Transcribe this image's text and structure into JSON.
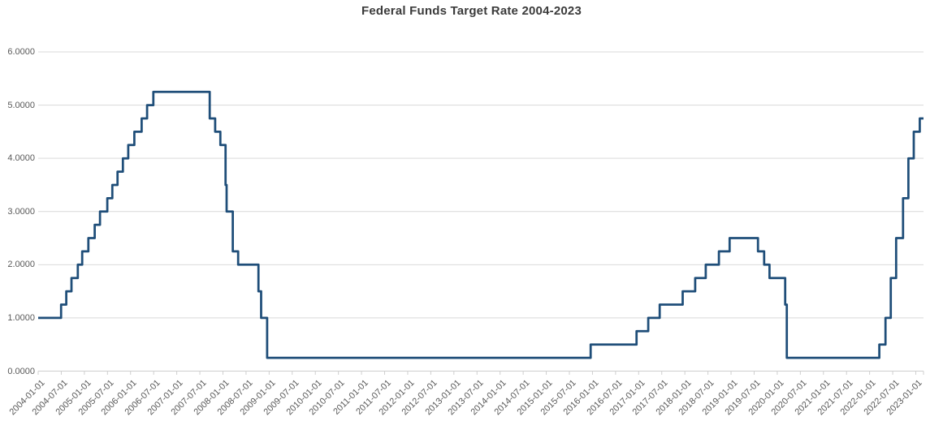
{
  "chart_data": {
    "type": "line",
    "title": "Federal Funds Target Rate 2004-2023",
    "xlabel": "",
    "ylabel": "",
    "legend": "none",
    "grid": "horizontal",
    "colors": {
      "line": "#1f4e79",
      "gridline": "#d9d9d9",
      "axis": "#cfcfcf",
      "tick_text": "#595959",
      "title_text": "#3b3b3b"
    },
    "y_axis": {
      "min": 0,
      "max": 6,
      "tick_labels": [
        "0.0000",
        "1.0000",
        "2.0000",
        "3.0000",
        "4.0000",
        "5.0000",
        "6.0000"
      ]
    },
    "x_axis": {
      "start": "2004-01-01",
      "end": "2023-03-01",
      "tick_labels": [
        "2004-01-01",
        "2004-07-01",
        "2005-01-01",
        "2005-07-01",
        "2006-01-01",
        "2006-07-01",
        "2007-01-01",
        "2007-07-01",
        "2008-01-01",
        "2008-07-01",
        "2009-01-01",
        "2009-07-01",
        "2010-01-01",
        "2010-07-01",
        "2011-01-01",
        "2011-07-01",
        "2012-01-01",
        "2012-07-01",
        "2013-01-01",
        "2013-07-01",
        "2014-01-01",
        "2014-07-01",
        "2015-01-01",
        "2015-07-01",
        "2016-01-01",
        "2016-07-01",
        "2017-01-01",
        "2017-07-01",
        "2018-01-01",
        "2018-07-01",
        "2019-01-01",
        "2019-07-01",
        "2020-01-01",
        "2020-07-01",
        "2021-01-01",
        "2021-07-01",
        "2022-01-01",
        "2022-07-01",
        "2023-01-01"
      ]
    },
    "series": [
      {
        "name": "Federal Funds Target Rate",
        "color": "#1f4e79",
        "step": true,
        "points": [
          [
            "2004-01-01",
            1.0
          ],
          [
            "2004-06-30",
            1.25
          ],
          [
            "2004-08-10",
            1.5
          ],
          [
            "2004-09-21",
            1.75
          ],
          [
            "2004-11-10",
            2.0
          ],
          [
            "2004-12-14",
            2.25
          ],
          [
            "2005-02-02",
            2.5
          ],
          [
            "2005-03-22",
            2.75
          ],
          [
            "2005-05-03",
            3.0
          ],
          [
            "2005-06-30",
            3.25
          ],
          [
            "2005-08-09",
            3.5
          ],
          [
            "2005-09-20",
            3.75
          ],
          [
            "2005-11-01",
            4.0
          ],
          [
            "2005-12-13",
            4.25
          ],
          [
            "2006-01-31",
            4.5
          ],
          [
            "2006-03-28",
            4.75
          ],
          [
            "2006-05-10",
            5.0
          ],
          [
            "2006-06-29",
            5.25
          ],
          [
            "2007-09-18",
            4.75
          ],
          [
            "2007-10-31",
            4.5
          ],
          [
            "2007-12-11",
            4.25
          ],
          [
            "2008-01-22",
            3.5
          ],
          [
            "2008-01-30",
            3.0
          ],
          [
            "2008-03-18",
            2.25
          ],
          [
            "2008-04-30",
            2.0
          ],
          [
            "2008-10-08",
            1.5
          ],
          [
            "2008-10-29",
            1.0
          ],
          [
            "2008-12-16",
            0.25
          ],
          [
            "2015-12-17",
            0.5
          ],
          [
            "2016-12-15",
            0.75
          ],
          [
            "2017-03-16",
            1.0
          ],
          [
            "2017-06-15",
            1.25
          ],
          [
            "2017-12-14",
            1.5
          ],
          [
            "2018-03-22",
            1.75
          ],
          [
            "2018-06-14",
            2.0
          ],
          [
            "2018-09-27",
            2.25
          ],
          [
            "2018-12-20",
            2.5
          ],
          [
            "2019-08-01",
            2.25
          ],
          [
            "2019-09-19",
            2.0
          ],
          [
            "2019-10-31",
            1.75
          ],
          [
            "2020-03-03",
            1.25
          ],
          [
            "2020-03-16",
            0.25
          ],
          [
            "2022-03-17",
            0.5
          ],
          [
            "2022-05-05",
            1.0
          ],
          [
            "2022-06-16",
            1.75
          ],
          [
            "2022-07-28",
            2.5
          ],
          [
            "2022-09-22",
            3.25
          ],
          [
            "2022-11-03",
            4.0
          ],
          [
            "2022-12-15",
            4.5
          ],
          [
            "2023-02-02",
            4.75
          ]
        ]
      }
    ]
  }
}
